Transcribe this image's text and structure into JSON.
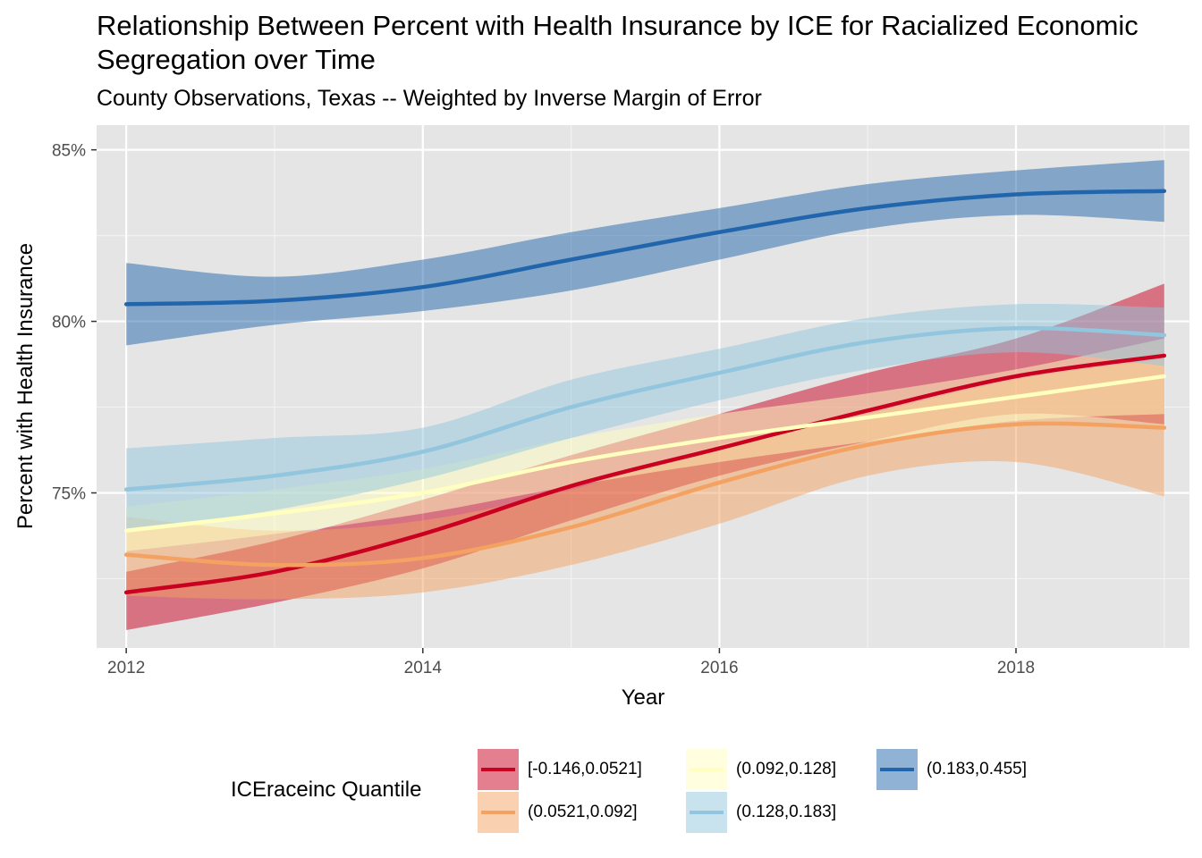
{
  "chart_data": {
    "type": "line",
    "title": "Relationship Between Percent with Health Insurance by ICE for Racialized Economic Segregation over Time",
    "subtitle": "County Observations, Texas -- Weighted by Inverse Margin of Error",
    "xlabel": "Year",
    "ylabel": "Percent with Health Insurance",
    "xlim": [
      2011.8,
      2019.17
    ],
    "ylim": [
      70.48,
      85.72
    ],
    "x_ticks": [
      2012,
      2014,
      2016,
      2018
    ],
    "x_tick_labels": [
      "2012",
      "2014",
      "2016",
      "2018"
    ],
    "y_ticks": [
      75,
      80,
      85
    ],
    "y_tick_labels": [
      "75%",
      "80%",
      "85%"
    ],
    "x": [
      2012,
      2013,
      2014,
      2015,
      2016,
      2017,
      2018,
      2019
    ],
    "grid": true,
    "legend_placement": "bottom",
    "legend_title": "ICEraceinc Quantile",
    "series": [
      {
        "name": "[-0.146,0.0521]",
        "color": "#ca0020",
        "values": [
          72.1,
          72.7,
          73.8,
          75.2,
          76.3,
          77.4,
          78.4,
          79.0
        ],
        "lower": [
          71.0,
          71.8,
          72.8,
          74.2,
          75.5,
          76.5,
          77.3,
          77.0
        ],
        "upper": [
          72.7,
          73.6,
          74.8,
          76.1,
          77.3,
          78.5,
          79.5,
          81.1
        ]
      },
      {
        "name": "(0.0521,0.092]",
        "color": "#f4a261",
        "values": [
          73.2,
          72.9,
          73.1,
          74.0,
          75.3,
          76.4,
          77.0,
          76.9
        ],
        "lower": [
          72.0,
          71.9,
          72.1,
          72.9,
          74.1,
          75.5,
          75.9,
          74.9
        ],
        "upper": [
          74.3,
          73.9,
          74.2,
          75.1,
          76.4,
          77.3,
          78.3,
          78.9
        ]
      },
      {
        "name": "(0.092,0.128]",
        "color": "#ffffbf",
        "values": [
          73.9,
          74.4,
          75.0,
          75.9,
          76.6,
          77.2,
          77.8,
          78.4
        ],
        "lower": [
          73.3,
          73.8,
          74.4,
          75.2,
          75.9,
          76.5,
          77.1,
          77.3
        ],
        "upper": [
          74.6,
          75.1,
          75.7,
          76.6,
          77.3,
          77.9,
          78.6,
          79.5
        ]
      },
      {
        "name": "(0.128,0.183]",
        "color": "#92c5de",
        "values": [
          75.1,
          75.5,
          76.2,
          77.5,
          78.5,
          79.4,
          79.8,
          79.6
        ],
        "lower": [
          73.9,
          74.5,
          75.4,
          76.6,
          77.7,
          78.6,
          79.1,
          78.7
        ],
        "upper": [
          76.3,
          76.6,
          76.9,
          78.3,
          79.2,
          80.1,
          80.5,
          80.4
        ]
      },
      {
        "name": "(0.183,0.455]",
        "color": "#2166ac",
        "values": [
          80.5,
          80.6,
          81.0,
          81.8,
          82.6,
          83.3,
          83.7,
          83.8
        ],
        "lower": [
          79.3,
          79.9,
          80.3,
          80.9,
          81.8,
          82.7,
          83.1,
          82.9
        ],
        "upper": [
          81.7,
          81.3,
          81.8,
          82.6,
          83.3,
          84.0,
          84.4,
          84.7
        ]
      }
    ]
  }
}
